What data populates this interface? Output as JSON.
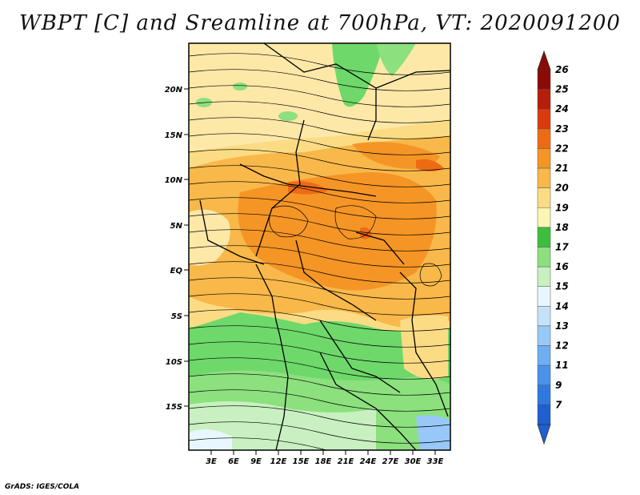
{
  "title": "WBPT [C] and Sreamline at 700hPa, VT: 2020091200",
  "footer": "GrADS: IGES/COLA",
  "lat_labels": [
    "20N",
    "15N",
    "10N",
    "5N",
    "EQ",
    "5S",
    "10S",
    "15S"
  ],
  "lon_labels": [
    "3E",
    "6E",
    "9E",
    "12E",
    "15E",
    "18E",
    "21E",
    "24E",
    "27E",
    "30E",
    "33E"
  ],
  "colorbar": {
    "labels": [
      "7",
      "9",
      "11",
      "12",
      "13",
      "14",
      "15",
      "16",
      "17",
      "18",
      "19",
      "20",
      "21",
      "22",
      "23",
      "24",
      "25",
      "26"
    ],
    "colors": [
      "#1f5fd0",
      "#2f78e0",
      "#4a92ea",
      "#6eaef2",
      "#98c8f8",
      "#c6e2fb",
      "#e8f6ff",
      "#c8f0c0",
      "#8ce07e",
      "#3cbf3c",
      "#fdf5b4",
      "#fbdc84",
      "#f8b84a",
      "#f59526",
      "#ee6b14",
      "#dc3a0c",
      "#b81c0a",
      "#8c0a06"
    ]
  }
}
